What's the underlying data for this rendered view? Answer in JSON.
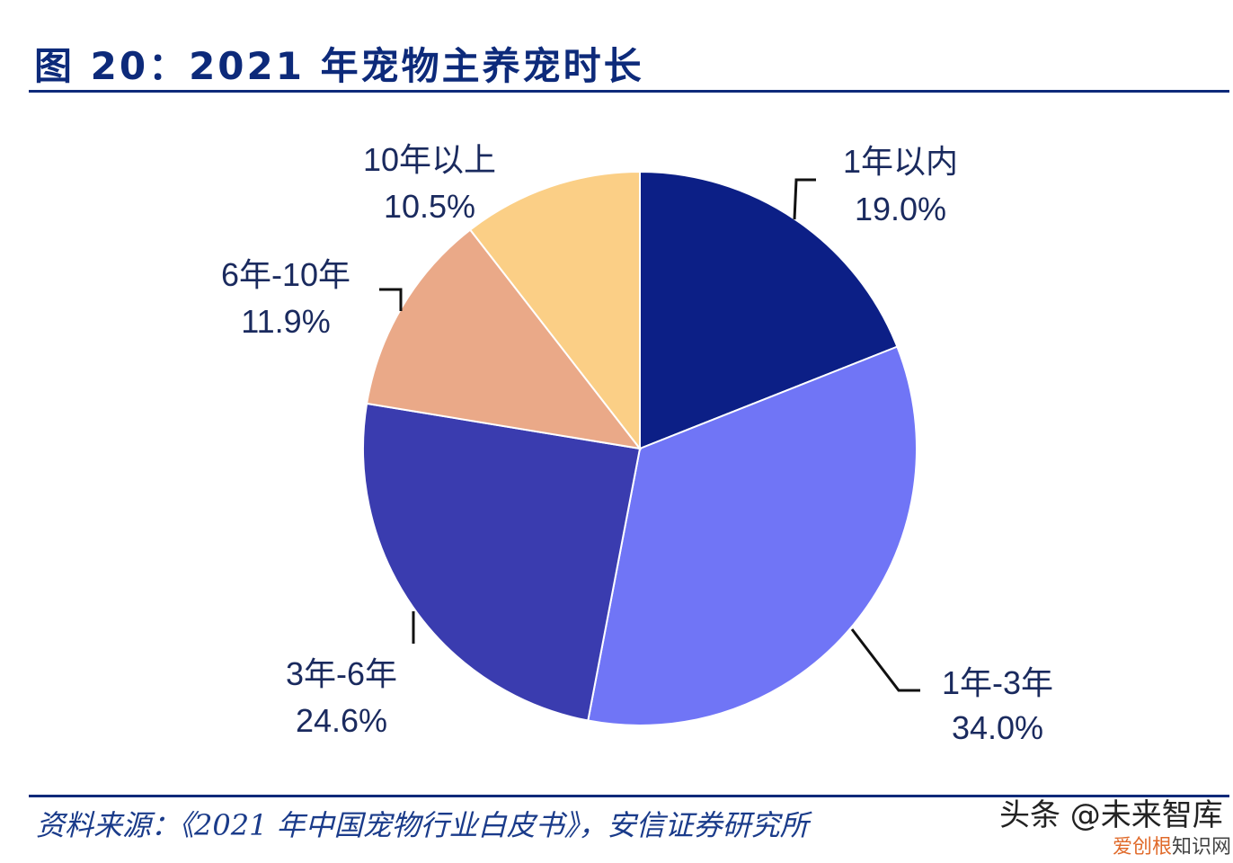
{
  "title": "图 20：2021 年宠物主养宠时长",
  "source": "资料来源：《2021 年中国宠物行业白皮书》，安信证券研究所",
  "watermark": {
    "main": "头条 @未来智库",
    "sub_orange": "爱创根",
    "sub_gray": "知识网"
  },
  "chart_data": {
    "type": "pie",
    "title": "",
    "categories": [
      "1年以内",
      "1年-3年",
      "3年-6年",
      "6年-10年",
      "10年以上"
    ],
    "values": [
      19.0,
      34.0,
      24.6,
      11.9,
      10.5
    ],
    "labels": [
      "19.0%",
      "34.0%",
      "24.6%",
      "11.9%",
      "10.5%"
    ],
    "colors": [
      "#0c1f86",
      "#7075f6",
      "#3a3caf",
      "#eaa988",
      "#fbcf86"
    ],
    "start": "12 o'clock, clockwise"
  }
}
